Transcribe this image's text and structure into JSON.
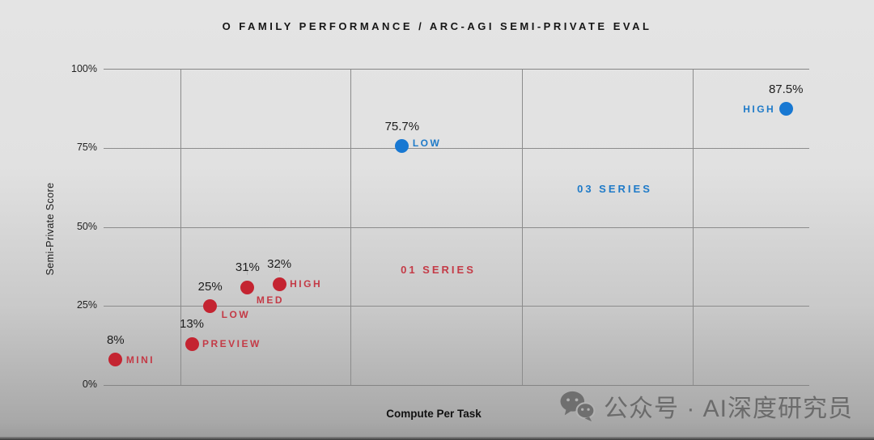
{
  "title": "O FAMILY PERFORMANCE / ARC-AGI SEMI-PRIVATE EVAL",
  "chart_data": {
    "type": "scatter",
    "title": "O FAMILY PERFORMANCE / ARC-AGI SEMI-PRIVATE EVAL",
    "xlabel": "Compute Per Task",
    "ylabel": "Semi-Private Score",
    "ylim": [
      0,
      100
    ],
    "ytick_labels": [
      "100%",
      "75%",
      "50%",
      "25%",
      "0%"
    ],
    "grid": true,
    "x_axis_numeric": false,
    "series": [
      {
        "id": "o1",
        "name": "01 SERIES",
        "color": "#c42431",
        "label_color": "#c43a46",
        "points": [
          {
            "model": "MINI",
            "value": 8,
            "value_label": "8%",
            "x_frac": 0.017,
            "name_side": "right"
          },
          {
            "model": "PREVIEW",
            "value": 13,
            "value_label": "13%",
            "x_frac": 0.125,
            "name_side": "right",
            "leader": true
          },
          {
            "model": "LOW",
            "value": 25,
            "value_label": "25%",
            "x_frac": 0.151,
            "name_side": "below-right",
            "dx": 14,
            "dy": 3
          },
          {
            "model": "MED",
            "value": 31,
            "value_label": "31%",
            "x_frac": 0.204,
            "name_side": "below-right",
            "dx": 11,
            "dy": 9,
            "leader": true
          },
          {
            "model": "HIGH",
            "value": 32,
            "value_label": "32%",
            "x_frac": 0.249,
            "name_side": "right",
            "leader": true
          }
        ],
        "annotation": {
          "label": "01 SERIES",
          "x_frac": 0.421,
          "y_value": 36.5
        }
      },
      {
        "id": "o3",
        "name": "03 SERIES",
        "color": "#1878d2",
        "label_color": "#1e7ac8",
        "points": [
          {
            "model": "LOW",
            "value": 75.7,
            "value_label": "75.7%",
            "x_frac": 0.423,
            "name_side": "right",
            "dy": -4
          },
          {
            "model": "HIGH",
            "value": 87.5,
            "value_label": "87.5%",
            "x_frac": 0.967,
            "name_side": "left",
            "dx": 13
          }
        ],
        "annotation": {
          "label": "03 SERIES",
          "x_frac": 0.671,
          "y_value": 62
        }
      }
    ]
  },
  "watermark": {
    "text": "公众号 · AI深度研究员",
    "icon": "wechat-icon"
  }
}
